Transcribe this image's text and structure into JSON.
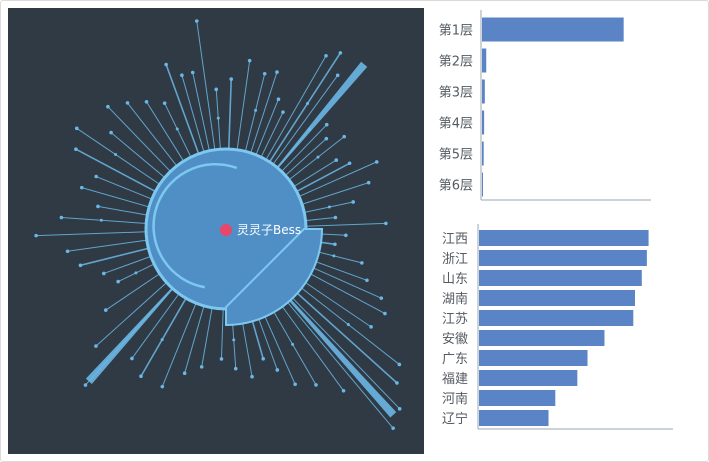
{
  "colors": {
    "panel_bg": "#2f3a44",
    "ray": "#6bb7e6",
    "ring_fill": "#4f8fc6",
    "ring_stroke": "#7cc8f0",
    "center_dot": "#e8466b",
    "bar": "#5b84c6",
    "axis": "#9aa8b6"
  },
  "radial": {
    "center_label": "灵灵子Bess"
  },
  "chart_data": [
    {
      "type": "bar",
      "orientation": "horizontal",
      "categories": [
        "第1层",
        "第2层",
        "第3层",
        "第4层",
        "第5层",
        "第6层"
      ],
      "values": [
        100,
        3,
        2,
        1.5,
        1.2,
        0.5
      ],
      "xlim": [
        0,
        120
      ]
    },
    {
      "type": "bar",
      "orientation": "horizontal",
      "categories": [
        "江西",
        "浙江",
        "山东",
        "湖南",
        "江苏",
        "安徽",
        "广东",
        "福建",
        "河南",
        "辽宁"
      ],
      "values": [
        100,
        99,
        96,
        92,
        91,
        74,
        64,
        58,
        45,
        41
      ],
      "xlim": [
        0,
        115
      ]
    }
  ]
}
